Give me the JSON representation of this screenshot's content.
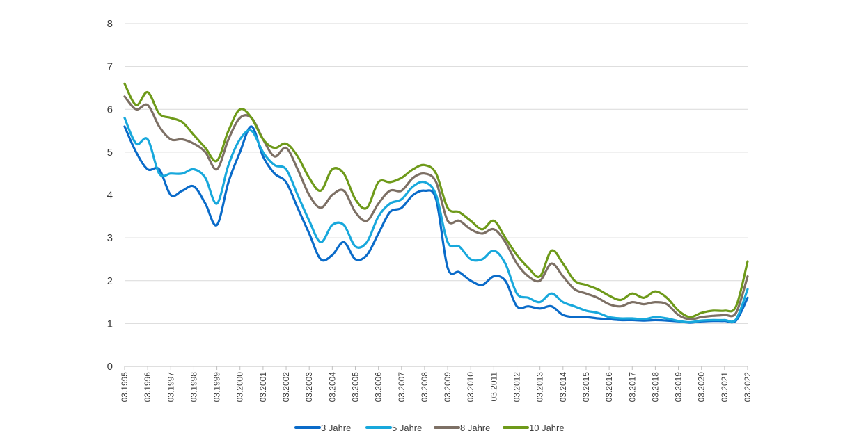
{
  "chart_data": {
    "type": "line",
    "title": "",
    "xlabel": "",
    "ylabel": "",
    "ylim": [
      0,
      8
    ],
    "yticks": [
      "0",
      "1",
      "2",
      "3",
      "4",
      "5",
      "6",
      "7",
      "8"
    ],
    "xlim": [
      1995,
      2022
    ],
    "xticks": [
      "03.1995",
      "03.1996",
      "03.1997",
      "03.1998",
      "03.1999",
      "03.2000",
      "03.2001",
      "03.2002",
      "03.2003",
      "03.2004",
      "03.2005",
      "03.2006",
      "03.2007",
      "03.2008",
      "03.2009",
      "03.2010",
      "03.2011",
      "03.2012",
      "03.2013",
      "03.2014",
      "03.2015",
      "03.2016",
      "03.2017",
      "03.2018",
      "03.2019",
      "03.2020",
      "03.2021",
      "03.2022"
    ],
    "grid": true,
    "legend": "bottom",
    "x": [
      1995.0,
      1995.5,
      1996.0,
      1996.5,
      1997.0,
      1997.5,
      1998.0,
      1998.5,
      1999.0,
      1999.5,
      2000.0,
      2000.5,
      2001.0,
      2001.5,
      2002.0,
      2002.5,
      2003.0,
      2003.5,
      2004.0,
      2004.5,
      2005.0,
      2005.5,
      2006.0,
      2006.5,
      2007.0,
      2007.5,
      2008.0,
      2008.5,
      2009.0,
      2009.5,
      2010.0,
      2010.5,
      2011.0,
      2011.5,
      2012.0,
      2012.5,
      2013.0,
      2013.5,
      2014.0,
      2014.5,
      2015.0,
      2015.5,
      2016.0,
      2016.5,
      2017.0,
      2017.5,
      2018.0,
      2018.5,
      2019.0,
      2019.5,
      2020.0,
      2020.5,
      2021.0,
      2021.5,
      2022.0
    ],
    "series": [
      {
        "name": "3 Jahre",
        "color": "#0a6bc9",
        "values": [
          5.6,
          5.0,
          4.6,
          4.6,
          4.0,
          4.1,
          4.2,
          3.8,
          3.3,
          4.3,
          5.0,
          5.6,
          4.9,
          4.5,
          4.3,
          3.7,
          3.1,
          2.5,
          2.6,
          2.9,
          2.5,
          2.6,
          3.1,
          3.6,
          3.7,
          4.0,
          4.1,
          3.9,
          2.3,
          2.2,
          2.0,
          1.9,
          2.1,
          2.0,
          1.4,
          1.4,
          1.35,
          1.4,
          1.2,
          1.15,
          1.15,
          1.12,
          1.1,
          1.08,
          1.08,
          1.07,
          1.08,
          1.07,
          1.05,
          1.02,
          1.05,
          1.06,
          1.06,
          1.07,
          1.6
        ]
      },
      {
        "name": "5 Jahre",
        "color": "#18a8dc",
        "values": [
          5.8,
          5.2,
          5.3,
          4.5,
          4.5,
          4.5,
          4.6,
          4.4,
          3.8,
          4.7,
          5.3,
          5.5,
          5.0,
          4.7,
          4.6,
          4.0,
          3.4,
          2.9,
          3.3,
          3.3,
          2.8,
          2.9,
          3.5,
          3.8,
          3.9,
          4.2,
          4.3,
          4.0,
          2.9,
          2.8,
          2.5,
          2.5,
          2.7,
          2.4,
          1.7,
          1.6,
          1.5,
          1.7,
          1.5,
          1.4,
          1.3,
          1.25,
          1.15,
          1.12,
          1.12,
          1.1,
          1.15,
          1.12,
          1.06,
          1.03,
          1.07,
          1.08,
          1.08,
          1.1,
          1.8
        ]
      },
      {
        "name": "8 Jahre",
        "color": "#7d7065",
        "values": [
          6.3,
          6.0,
          6.1,
          5.6,
          5.3,
          5.3,
          5.2,
          5.0,
          4.6,
          5.3,
          5.8,
          5.8,
          5.3,
          4.9,
          5.1,
          4.6,
          4.0,
          3.7,
          4.0,
          4.1,
          3.6,
          3.4,
          3.8,
          4.1,
          4.1,
          4.4,
          4.5,
          4.3,
          3.4,
          3.4,
          3.2,
          3.1,
          3.2,
          2.9,
          2.4,
          2.1,
          2.0,
          2.4,
          2.1,
          1.8,
          1.7,
          1.6,
          1.45,
          1.4,
          1.5,
          1.45,
          1.5,
          1.45,
          1.2,
          1.1,
          1.15,
          1.18,
          1.2,
          1.25,
          2.1
        ]
      },
      {
        "name": "10 Jahre",
        "color": "#6e9a1a",
        "values": [
          6.6,
          6.1,
          6.4,
          5.9,
          5.8,
          5.7,
          5.4,
          5.1,
          4.8,
          5.5,
          6.0,
          5.8,
          5.3,
          5.1,
          5.2,
          4.9,
          4.4,
          4.1,
          4.6,
          4.5,
          3.9,
          3.7,
          4.3,
          4.3,
          4.4,
          4.6,
          4.7,
          4.5,
          3.7,
          3.6,
          3.4,
          3.2,
          3.4,
          3.0,
          2.6,
          2.3,
          2.1,
          2.7,
          2.4,
          2.0,
          1.9,
          1.8,
          1.65,
          1.55,
          1.7,
          1.6,
          1.75,
          1.6,
          1.3,
          1.15,
          1.25,
          1.3,
          1.3,
          1.4,
          2.45
        ]
      }
    ]
  }
}
